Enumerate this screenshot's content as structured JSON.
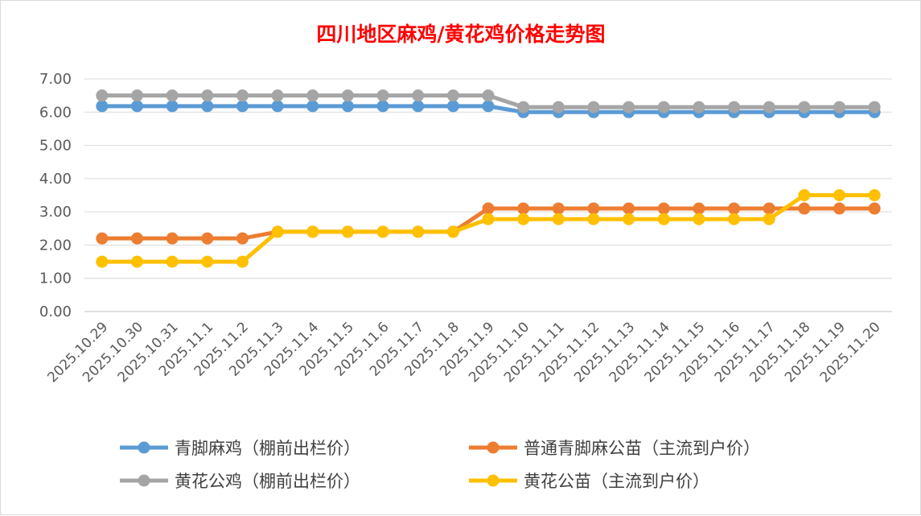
{
  "chart_data": {
    "type": "line",
    "title": "四川地区麻鸡/黄花鸡价格走势图",
    "xlabel": "",
    "ylabel": "",
    "ylim": [
      0,
      7
    ],
    "yticks": [
      "0.00",
      "1.00",
      "2.00",
      "3.00",
      "4.00",
      "5.00",
      "6.00",
      "7.00"
    ],
    "grid": true,
    "legend_position": "bottom",
    "categories": [
      "2025.10.29",
      "2025.10.30",
      "2025.10.31",
      "2025.11.1",
      "2025.11.2",
      "2025.11.3",
      "2025.11.4",
      "2025.11.5",
      "2025.11.6",
      "2025.11.7",
      "2025.11.8",
      "2025.11.9",
      "2025.11.10",
      "2025.11.11",
      "2025.11.12",
      "2025.11.13",
      "2025.11.14",
      "2025.11.15",
      "2025.11.16",
      "2025.11.17",
      "2025.11.18",
      "2025.11.19",
      "2025.11.20"
    ],
    "series": [
      {
        "name": "青脚麻鸡（棚前出栏价）",
        "color": "#5b9bd5",
        "values": [
          6.18,
          6.18,
          6.18,
          6.18,
          6.18,
          6.18,
          6.18,
          6.18,
          6.18,
          6.18,
          6.18,
          6.18,
          6.0,
          6.0,
          6.0,
          6.0,
          6.0,
          6.0,
          6.0,
          6.0,
          6.0,
          6.0,
          6.0
        ]
      },
      {
        "name": "普通青脚麻公苗（主流到户价）",
        "color": "#ed7d31",
        "values": [
          2.2,
          2.2,
          2.2,
          2.2,
          2.2,
          2.4,
          2.4,
          2.4,
          2.4,
          2.4,
          2.4,
          3.1,
          3.1,
          3.1,
          3.1,
          3.1,
          3.1,
          3.1,
          3.1,
          3.1,
          3.1,
          3.1,
          3.1
        ]
      },
      {
        "name": "黄花公鸡（棚前出栏价）",
        "color": "#a5a5a5",
        "values": [
          6.5,
          6.5,
          6.5,
          6.5,
          6.5,
          6.5,
          6.5,
          6.5,
          6.5,
          6.5,
          6.5,
          6.5,
          6.15,
          6.15,
          6.15,
          6.15,
          6.15,
          6.15,
          6.15,
          6.15,
          6.15,
          6.15,
          6.15
        ]
      },
      {
        "name": "黄花公苗（主流到户价）",
        "color": "#ffc000",
        "values": [
          1.5,
          1.5,
          1.5,
          1.5,
          1.5,
          2.4,
          2.4,
          2.4,
          2.4,
          2.4,
          2.4,
          2.78,
          2.78,
          2.78,
          2.78,
          2.78,
          2.78,
          2.78,
          2.78,
          2.78,
          3.5,
          3.5,
          3.5
        ]
      }
    ]
  }
}
